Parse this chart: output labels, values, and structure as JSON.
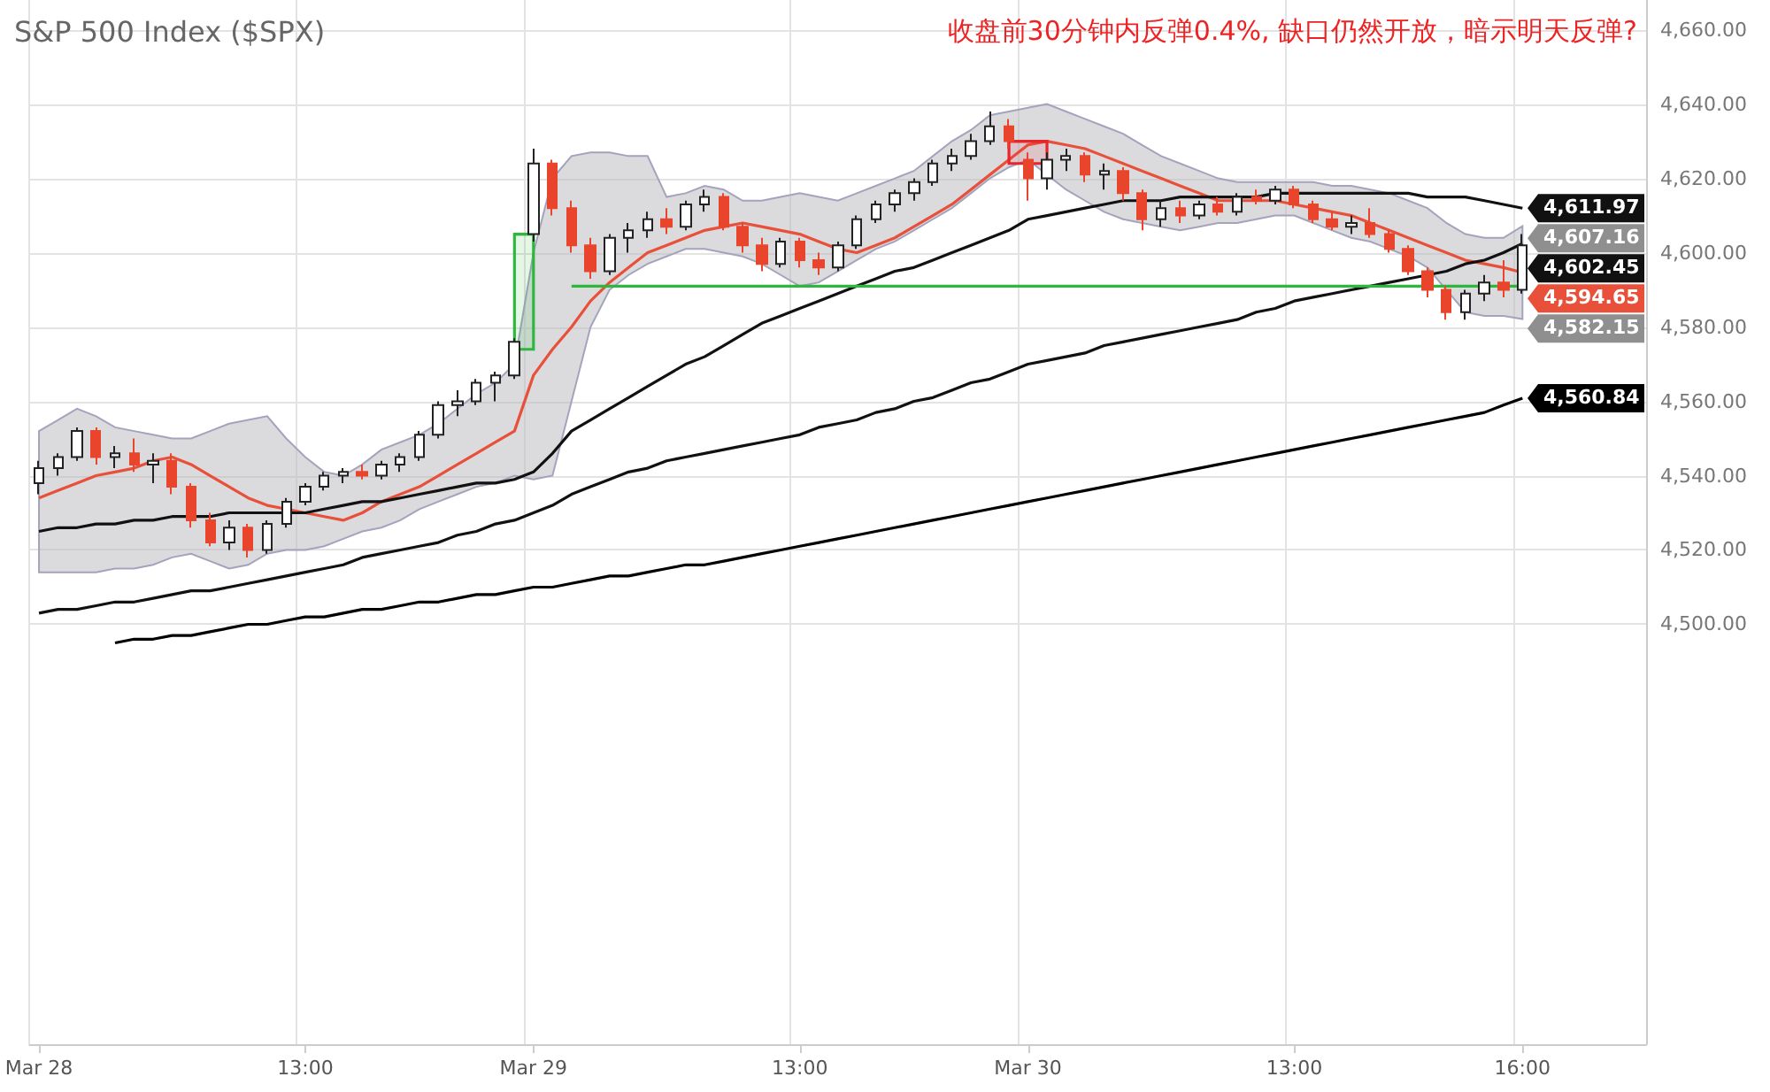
{
  "chart_data": {
    "type": "candlestick",
    "title": "S&P 500 Index ($SPX)",
    "annotations": [
      "收盘前30分钟内反弹0.4%, 缺口仍然开放，暗示明天反弹?",
      {
        "text": "4,611.97",
        "x": "16:00",
        "y": 4611.97
      },
      {
        "text": "4,607.16",
        "x": "16:00",
        "y": 4607.16
      },
      {
        "text": "4,602.45",
        "x": "16:00",
        "y": 4602.45
      },
      {
        "text": "4,594.65",
        "x": "16:00",
        "y": 4594.65
      },
      {
        "text": "4,582.15",
        "x": "16:00",
        "y": 4582.15
      },
      {
        "text": "4,560.84",
        "x": "16:00",
        "y": 4560.84
      }
    ],
    "categories": [
      "Mar 28",
      null,
      null,
      null,
      null,
      null,
      null,
      null,
      null,
      null,
      null,
      null,
      null,
      null,
      "13:00",
      null,
      null,
      null,
      null,
      null,
      null,
      null,
      null,
      null,
      null,
      null,
      "Mar 29",
      null,
      null,
      null,
      null,
      null,
      null,
      null,
      null,
      null,
      null,
      null,
      null,
      null,
      "13:00",
      null,
      null,
      null,
      null,
      null,
      null,
      null,
      null,
      null,
      null,
      null,
      "Mar 30",
      null,
      null,
      null,
      null,
      null,
      null,
      null,
      null,
      null,
      null,
      null,
      null,
      null,
      "13:00",
      null,
      null,
      null,
      null,
      null,
      null,
      null,
      null,
      null,
      null,
      null,
      "16:00"
    ],
    "ylim": [
      4387,
      4668
    ],
    "yticks": [
      {
        "value": 4500,
        "label": "4,500.00"
      },
      {
        "value": 4520,
        "label": "4,520.00"
      },
      {
        "value": 4540,
        "label": "4,540.00"
      },
      {
        "value": 4560,
        "label": "4,560.00"
      },
      {
        "value": 4580,
        "label": "4,580.00"
      },
      {
        "value": 4600,
        "label": "4,600.00"
      },
      {
        "value": 4620,
        "label": "4,620.00"
      },
      {
        "value": 4640,
        "label": "4,640.00"
      },
      {
        "value": 4660,
        "label": "4,660.00"
      }
    ],
    "grid": true,
    "series": [
      {
        "type": "line",
        "color": "#e8503a",
        "values": [
          4534,
          4536,
          4538,
          4540,
          4541,
          4542,
          4544,
          4545,
          4543,
          4540,
          4537,
          4534,
          4532,
          4531,
          4530,
          4529,
          4528,
          4530,
          4533,
          4535,
          4537,
          4540,
          4543,
          4546,
          4549,
          4552,
          4567,
          4574,
          4580,
          4587,
          4592,
          4596,
          4600,
          4602,
          4604,
          4606,
          4607,
          4608,
          4607,
          4606,
          4605,
          4603,
          4601,
          4600,
          4602,
          4604,
          4607,
          4610,
          4613,
          4617,
          4621,
          4625,
          4629,
          4630,
          4629,
          4628,
          4626,
          4624,
          4622,
          4620,
          4618,
          4616,
          4614,
          4614,
          4614,
          4614,
          4613,
          4612,
          4611,
          4610,
          4608,
          4606,
          4604,
          4602,
          4600,
          4598,
          4597,
          4596,
          4594.65
        ],
        "upper": [
          4552,
          4555,
          4558,
          4556,
          4553,
          4552,
          4551,
          4550,
          4550,
          4552,
          4554,
          4555,
          4556,
          4550,
          4545,
          4541,
          4540,
          4543,
          4547,
          4549,
          4551,
          4554,
          4558,
          4562,
          4565,
          4570,
          4600,
          4620,
          4626,
          4627,
          4627,
          4626,
          4626,
          4615,
          4616,
          4618,
          4617,
          4614,
          4614,
          4615,
          4616,
          4615,
          4614,
          4616,
          4618,
          4620,
          4622,
          4626,
          4630,
          4633,
          4637,
          4638,
          4639,
          4640,
          4638,
          4636,
          4634,
          4632,
          4629,
          4626,
          4624,
          4622,
          4620,
          4619,
          4619,
          4619,
          4619,
          4619,
          4618,
          4618,
          4617,
          4616,
          4614,
          4612,
          4608,
          4605,
          4604,
          4604,
          4607.16
        ],
        "lower": [
          4514,
          4514,
          4514,
          4514,
          4515,
          4515,
          4516,
          4518,
          4519,
          4517,
          4515,
          4516,
          4519,
          4520,
          4520,
          4521,
          4523,
          4525,
          4526,
          4528,
          4531,
          4533,
          4535,
          4537,
          4538,
          4540,
          4539,
          4540,
          4560,
          4580,
          4590,
          4594,
          4597,
          4599,
          4601,
          4601,
          4600,
          4599,
          4597,
          4594,
          4591,
          4592,
          4595,
          4598,
          4601,
          4603,
          4606,
          4609,
          4612,
          4616,
          4620,
          4623,
          4625,
          4621,
          4617,
          4614,
          4611,
          4609,
          4608,
          4607,
          4606,
          4607,
          4608,
          4608,
          4609,
          4610,
          4610,
          4608,
          4606,
          4604,
          4603,
          4601,
          4599,
          4596,
          4590,
          4584,
          4583,
          4583,
          4582.15
        ]
      },
      {
        "type": "line",
        "color": "#111111",
        "values": [
          4525,
          4526,
          4526,
          4527,
          4527,
          4528,
          4528,
          4529,
          4529,
          4529,
          4530,
          4530,
          4530,
          4530,
          4530,
          4531,
          4532,
          4533,
          4533,
          4534,
          4535,
          4536,
          4537,
          4538,
          4538,
          4539,
          4541,
          4546,
          4552,
          4555,
          4558,
          4561,
          4564,
          4567,
          4570,
          4572,
          4575,
          4578,
          4581,
          4583,
          4585,
          4587,
          4589,
          4591,
          4593,
          4595,
          4596,
          4598,
          4600,
          4602,
          4604,
          4606,
          4609,
          4610,
          4611,
          4612,
          4613,
          4614,
          4614,
          4614,
          4615,
          4615,
          4615,
          4615,
          4615,
          4616,
          4616,
          4616,
          4616,
          4616,
          4616,
          4616,
          4616,
          4615,
          4615,
          4615,
          4614,
          4613,
          4611.97
        ]
      },
      {
        "type": "line",
        "color": "#111111",
        "values": [
          4503,
          4504,
          4504,
          4505,
          4506,
          4506,
          4507,
          4508,
          4509,
          4509,
          4510,
          4511,
          4512,
          4513,
          4514,
          4515,
          4516,
          4518,
          4519,
          4520,
          4521,
          4522,
          4524,
          4525,
          4527,
          4528,
          4530,
          4532,
          4535,
          4537,
          4539,
          4541,
          4542,
          4544,
          4545,
          4546,
          4547,
          4548,
          4549,
          4550,
          4551,
          4553,
          4554,
          4555,
          4557,
          4558,
          4560,
          4561,
          4563,
          4565,
          4566,
          4568,
          4570,
          4571,
          4572,
          4573,
          4575,
          4576,
          4577,
          4578,
          4579,
          4580,
          4581,
          4582,
          4584,
          4585,
          4587,
          4588,
          4589,
          4590,
          4591,
          4592,
          4593,
          4594,
          4595,
          4597,
          4598,
          4600,
          4602.45
        ]
      },
      {
        "type": "line",
        "color": "#000000",
        "values": [
          null,
          null,
          null,
          null,
          4495,
          4496,
          4496,
          4497,
          4497,
          4498,
          4499,
          4500,
          4500,
          4501,
          4502,
          4502,
          4503,
          4504,
          4504,
          4505,
          4506,
          4506,
          4507,
          4508,
          4508,
          4509,
          4510,
          4510,
          4511,
          4512,
          4513,
          4513,
          4514,
          4515,
          4516,
          4516,
          4517,
          4518,
          4519,
          4520,
          4521,
          4522,
          4523,
          4524,
          4525,
          4526,
          4527,
          4528,
          4529,
          4530,
          4531,
          4532,
          4533,
          4534,
          4535,
          4536,
          4537,
          4538,
          4539,
          4540,
          4541,
          4542,
          4543,
          4544,
          4545,
          4546,
          4547,
          4548,
          4549,
          4550,
          4551,
          4552,
          4553,
          4554,
          4555,
          4556,
          4557,
          4559,
          4560.84
        ]
      },
      {
        "type": "line",
        "color": "#2db83d",
        "values": [
          null,
          null,
          null,
          null,
          null,
          null,
          null,
          null,
          null,
          null,
          null,
          null,
          null,
          null,
          null,
          null,
          null,
          null,
          null,
          null,
          null,
          null,
          null,
          null,
          null,
          4605,
          4605,
          null,
          null,
          null,
          null,
          null,
          null,
          null,
          null,
          null,
          null,
          null,
          null,
          null,
          null,
          null,
          null,
          null,
          null,
          null,
          null,
          null,
          null,
          null,
          null,
          null,
          null,
          null,
          null,
          null,
          null,
          null,
          null,
          null,
          null,
          null,
          null,
          null,
          null,
          null,
          null,
          null,
          null,
          null,
          null,
          null,
          null,
          null,
          null,
          null,
          null,
          null,
          null
        ],
        "upper": [
          null,
          null,
          null,
          null,
          null,
          null,
          null,
          null,
          null,
          null,
          null,
          null,
          null,
          null,
          null,
          null,
          null,
          null,
          null,
          null,
          null,
          null,
          null,
          null,
          null,
          4605,
          4605,
          null,
          null,
          null,
          null,
          null,
          null,
          null,
          null,
          null,
          null,
          null,
          null,
          null,
          null,
          null,
          null,
          null,
          null,
          null,
          null,
          null,
          null,
          null,
          null,
          null,
          null,
          null,
          null,
          null,
          null,
          null,
          null,
          null,
          null,
          null,
          null,
          null,
          null,
          null,
          null,
          null,
          null,
          null,
          null,
          null,
          null,
          null,
          null,
          null,
          null,
          null,
          null
        ],
        "lower": [
          null,
          null,
          null,
          null,
          null,
          null,
          null,
          null,
          null,
          null,
          null,
          null,
          null,
          null,
          null,
          null,
          null,
          null,
          null,
          null,
          null,
          null,
          null,
          null,
          null,
          4574,
          4574,
          null,
          null,
          null,
          null,
          null,
          null,
          null,
          null,
          null,
          null,
          null,
          null,
          null,
          null,
          null,
          null,
          null,
          null,
          null,
          null,
          null,
          null,
          null,
          null,
          null,
          null,
          null,
          null,
          null,
          null,
          null,
          null,
          null,
          null,
          null,
          null,
          null,
          null,
          null,
          null,
          null,
          null,
          null,
          null,
          null,
          null,
          null,
          null,
          null,
          null,
          null,
          null
        ]
      },
      {
        "type": "line",
        "color": "#e8252a",
        "values": [
          null,
          null,
          null,
          null,
          null,
          null,
          null,
          null,
          null,
          null,
          null,
          null,
          null,
          null,
          null,
          null,
          null,
          null,
          null,
          null,
          null,
          null,
          null,
          null,
          null,
          null,
          null,
          null,
          null,
          null,
          null,
          null,
          null,
          null,
          null,
          null,
          null,
          null,
          null,
          null,
          null,
          null,
          null,
          null,
          null,
          null,
          null,
          null,
          null,
          null,
          null,
          4630,
          4630,
          4630,
          null,
          null,
          null,
          null,
          null,
          null,
          null,
          null,
          null,
          null,
          null,
          null,
          null,
          null,
          null,
          null,
          null,
          null,
          null,
          null,
          null,
          null,
          null,
          null,
          null
        ],
        "upper": [
          null,
          null,
          null,
          null,
          null,
          null,
          null,
          null,
          null,
          null,
          null,
          null,
          null,
          null,
          null,
          null,
          null,
          null,
          null,
          null,
          null,
          null,
          null,
          null,
          null,
          null,
          null,
          null,
          null,
          null,
          null,
          null,
          null,
          null,
          null,
          null,
          null,
          null,
          null,
          null,
          null,
          null,
          null,
          null,
          null,
          null,
          null,
          null,
          null,
          null,
          null,
          4630,
          4630,
          4630,
          null,
          null,
          null,
          null,
          null,
          null,
          null,
          null,
          null,
          null,
          null,
          null,
          null,
          null,
          null,
          null,
          null,
          null,
          null,
          null,
          null,
          null,
          null,
          null,
          null
        ],
        "lower": [
          null,
          null,
          null,
          null,
          null,
          null,
          null,
          null,
          null,
          null,
          null,
          null,
          null,
          null,
          null,
          null,
          null,
          null,
          null,
          null,
          null,
          null,
          null,
          null,
          null,
          null,
          null,
          null,
          null,
          null,
          null,
          null,
          null,
          null,
          null,
          null,
          null,
          null,
          null,
          null,
          null,
          null,
          null,
          null,
          null,
          null,
          null,
          null,
          null,
          null,
          null,
          4624,
          4624,
          4624,
          null,
          null,
          null,
          null,
          null,
          null,
          null,
          null,
          null,
          null,
          null,
          null,
          null,
          null,
          null,
          null,
          null,
          null,
          null,
          null,
          null,
          null,
          null,
          null,
          null
        ]
      },
      {
        "type": "line",
        "color": "#2db83d",
        "values": [
          null,
          null,
          null,
          null,
          null,
          null,
          null,
          null,
          null,
          null,
          null,
          null,
          null,
          null,
          null,
          null,
          null,
          null,
          null,
          null,
          null,
          null,
          null,
          null,
          null,
          null,
          null,
          null,
          4591,
          4591,
          4591,
          4591,
          4591,
          4591,
          4591,
          4591,
          4591,
          4591,
          4591,
          4591,
          4591,
          4591,
          4591,
          4591,
          4591,
          4591,
          4591,
          4591,
          4591,
          4591,
          4591,
          4591,
          4591,
          4591,
          4591,
          4591,
          4591,
          4591,
          4591,
          4591,
          4591,
          4591,
          4591,
          4591,
          4591,
          4591,
          4591,
          4591,
          4591,
          4591,
          4591,
          4591,
          4591,
          4591,
          4591,
          4591,
          4591,
          4591,
          4591
        ]
      },
      {
        "colors": [
          "#ffffff",
          "#ffffff",
          "#ffffff",
          "#e8452c",
          "#ffffff",
          "#e8452c",
          "#ffffff",
          "#e8452c",
          "#e8452c",
          "#e8452c",
          "#ffffff",
          "#e8452c",
          "#ffffff",
          "#ffffff",
          "#ffffff",
          "#ffffff",
          "#ffffff",
          "#e8452c",
          "#ffffff",
          "#ffffff",
          "#ffffff",
          "#ffffff",
          "#ffffff",
          "#ffffff",
          "#ffffff",
          "#ffffff",
          "#ffffff",
          "#e8452c",
          "#e8452c",
          "#e8452c",
          "#ffffff",
          "#ffffff",
          "#ffffff",
          "#e8452c",
          "#ffffff",
          "#ffffff",
          "#e8452c",
          "#e8452c",
          "#e8452c",
          "#ffffff",
          "#e8452c",
          "#e8452c",
          "#ffffff",
          "#ffffff",
          "#ffffff",
          "#ffffff",
          "#ffffff",
          "#ffffff",
          "#ffffff",
          "#ffffff",
          "#ffffff",
          "#e8452c",
          "#e8452c",
          "#ffffff",
          "#ffffff",
          "#e8452c",
          "#ffffff",
          "#e8452c",
          "#e8452c",
          "#ffffff",
          "#e8452c",
          "#ffffff",
          "#e8452c",
          "#ffffff",
          "#e8452c",
          "#ffffff",
          "#e8452c",
          "#e8452c",
          "#e8452c",
          "#ffffff",
          "#e8452c",
          "#e8452c",
          "#e8452c",
          "#e8452c",
          "#e8452c",
          "#ffffff",
          "#ffffff",
          "#e8452c",
          "#ffffff"
        ],
        "ohlc": [
          [
            4538,
            4544,
            4535,
            4542
          ],
          [
            4542,
            4546,
            4540,
            4545
          ],
          [
            4545,
            4553,
            4544,
            4552
          ],
          [
            4552,
            4553,
            4543,
            4545
          ],
          [
            4545,
            4548,
            4542,
            4546
          ],
          [
            4546,
            4550,
            4541,
            4543
          ],
          [
            4543,
            4546,
            4538,
            4544
          ],
          [
            4544,
            4546,
            4535,
            4537
          ],
          [
            4537,
            4538,
            4526,
            4528
          ],
          [
            4528,
            4530,
            4521,
            4522
          ],
          [
            4522,
            4528,
            4520,
            4526
          ],
          [
            4526,
            4527,
            4518,
            4520
          ],
          [
            4520,
            4528,
            4519,
            4527
          ],
          [
            4527,
            4534,
            4526,
            4533
          ],
          [
            4533,
            4538,
            4532,
            4537
          ],
          [
            4537,
            4541,
            4536,
            4540
          ],
          [
            4540,
            4542,
            4538,
            4541
          ],
          [
            4541,
            4543,
            4539,
            4540
          ],
          [
            4540,
            4544,
            4539,
            4543
          ],
          [
            4543,
            4546,
            4541,
            4545
          ],
          [
            4545,
            4552,
            4544,
            4551
          ],
          [
            4551,
            4560,
            4550,
            4559
          ],
          [
            4559,
            4563,
            4556,
            4560
          ],
          [
            4560,
            4566,
            4559,
            4565
          ],
          [
            4565,
            4568,
            4560,
            4567
          ],
          [
            4567,
            4577,
            4566,
            4576
          ],
          [
            4605,
            4628,
            4603,
            4624
          ],
          [
            4624,
            4625,
            4610,
            4612
          ],
          [
            4612,
            4614,
            4600,
            4602
          ],
          [
            4602,
            4604,
            4593,
            4595
          ],
          [
            4595,
            4605,
            4594,
            4604
          ],
          [
            4604,
            4608,
            4600,
            4606
          ],
          [
            4606,
            4611,
            4604,
            4609
          ],
          [
            4609,
            4612,
            4605,
            4607
          ],
          [
            4607,
            4614,
            4606,
            4613
          ],
          [
            4613,
            4617,
            4611,
            4615
          ],
          [
            4615,
            4616,
            4606,
            4607
          ],
          [
            4607,
            4608,
            4600,
            4602
          ],
          [
            4602,
            4604,
            4595,
            4597
          ],
          [
            4597,
            4604,
            4596,
            4603
          ],
          [
            4603,
            4604,
            4596,
            4598
          ],
          [
            4598,
            4600,
            4594,
            4596
          ],
          [
            4596,
            4603,
            4595,
            4602
          ],
          [
            4602,
            4610,
            4601,
            4609
          ],
          [
            4609,
            4614,
            4608,
            4613
          ],
          [
            4613,
            4617,
            4611,
            4616
          ],
          [
            4616,
            4620,
            4614,
            4619
          ],
          [
            4619,
            4625,
            4618,
            4624
          ],
          [
            4624,
            4628,
            4622,
            4626
          ],
          [
            4626,
            4632,
            4625,
            4630
          ],
          [
            4630,
            4638,
            4629,
            4634
          ],
          [
            4634,
            4636,
            4628,
            4630
          ],
          [
            4625,
            4627,
            4614,
            4620
          ],
          [
            4620,
            4627,
            4617,
            4625
          ],
          [
            4625,
            4628,
            4622,
            4626
          ],
          [
            4626,
            4627,
            4619,
            4621
          ],
          [
            4621,
            4624,
            4617,
            4622
          ],
          [
            4622,
            4623,
            4614,
            4616
          ],
          [
            4616,
            4617,
            4606,
            4609
          ],
          [
            4609,
            4614,
            4607,
            4612
          ],
          [
            4612,
            4614,
            4608,
            4610
          ],
          [
            4610,
            4614,
            4609,
            4613
          ],
          [
            4613,
            4615,
            4610,
            4611
          ],
          [
            4611,
            4616,
            4610,
            4615
          ],
          [
            4615,
            4617,
            4613,
            4614
          ],
          [
            4614,
            4618,
            4613,
            4617
          ],
          [
            4617,
            4618,
            4612,
            4613
          ],
          [
            4613,
            4614,
            4608,
            4609
          ],
          [
            4609,
            4611,
            4606,
            4607
          ],
          [
            4607,
            4610,
            4605,
            4608
          ],
          [
            4608,
            4612,
            4604,
            4605
          ],
          [
            4605,
            4606,
            4600,
            4601
          ],
          [
            4601,
            4602,
            4594,
            4595
          ],
          [
            4595,
            4596,
            4588,
            4590
          ],
          [
            4590,
            4591,
            4582,
            4584
          ],
          [
            4584,
            4590,
            4582,
            4589
          ],
          [
            4589,
            4594,
            4587,
            4592
          ],
          [
            4592,
            4598,
            4588,
            4590
          ],
          [
            4590,
            4605,
            4589,
            4602
          ]
        ]
      }
    ]
  }
}
